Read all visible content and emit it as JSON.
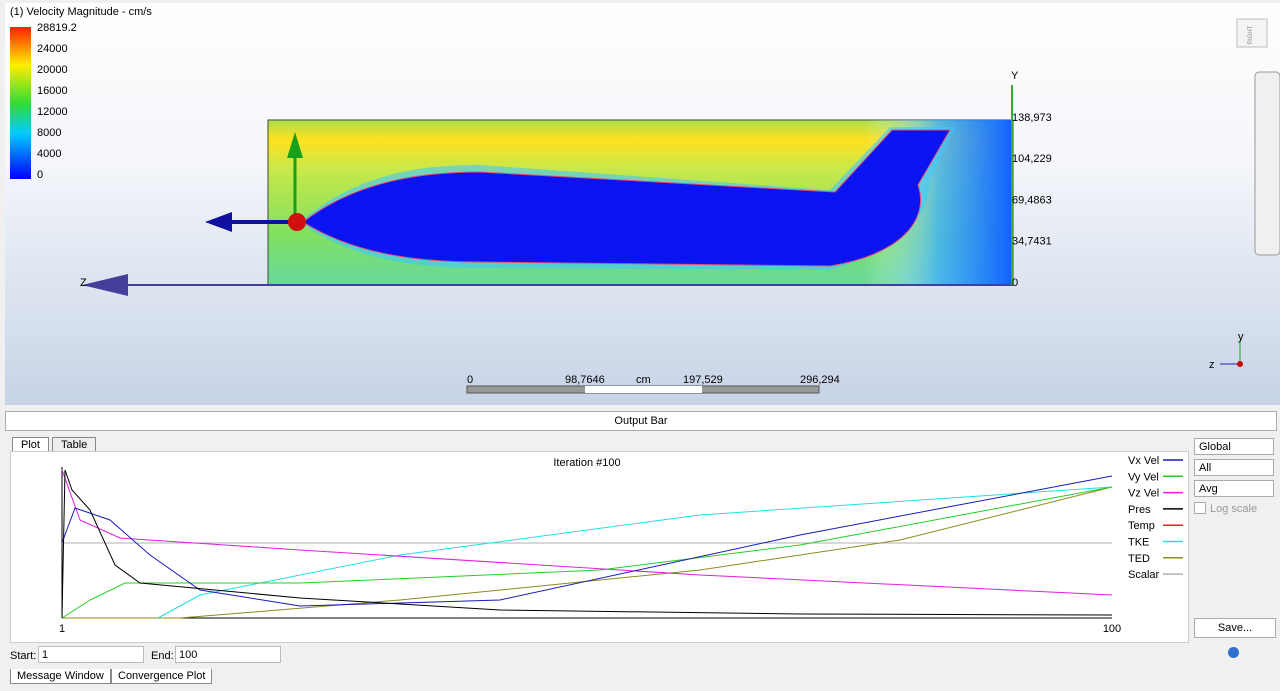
{
  "viewport": {
    "title": "(1) Velocity Magnitude - cm/s",
    "legend": [
      "28819.2",
      "24000",
      "20000",
      "16000",
      "12000",
      "8000",
      "4000",
      "0"
    ],
    "axis_y": "Y",
    "axis_z": "Z",
    "ruler": [
      "138,973",
      "104,229",
      "69,4863",
      "34,7431",
      "0"
    ],
    "scale_bar": [
      "0",
      "98,7646",
      "cm",
      "197,529",
      "296,294"
    ],
    "view_cube": "RIGHT",
    "triad": {
      "y": "y",
      "z": "z"
    }
  },
  "output_bar": "Output Bar",
  "tabs": [
    "Plot",
    "Table"
  ],
  "plot": {
    "title": "Iteration #100",
    "x_start": "1",
    "x_end": "100",
    "series": [
      {
        "name": "Vx Vel",
        "color": "#1a1ab8"
      },
      {
        "name": "Vy Vel",
        "color": "#22d022"
      },
      {
        "name": "Vz Vel",
        "color": "#e01ee0"
      },
      {
        "name": "Pres",
        "color": "#000000"
      },
      {
        "name": "Temp",
        "color": "#e02020"
      },
      {
        "name": "TKE",
        "color": "#22e0e0"
      },
      {
        "name": "TED",
        "color": "#8c8c1e"
      },
      {
        "name": "Scalar",
        "color": "#b0b0b0"
      }
    ]
  },
  "controls": {
    "dropdowns": [
      "Global",
      "All",
      "Avg"
    ],
    "log_scale": "Log scale",
    "save": "Save..."
  },
  "range": {
    "start_label": "Start:",
    "start": "1",
    "end_label": "End:",
    "end": "100"
  },
  "bottom_tabs": [
    "Message Window",
    "Convergence Plot"
  ]
}
